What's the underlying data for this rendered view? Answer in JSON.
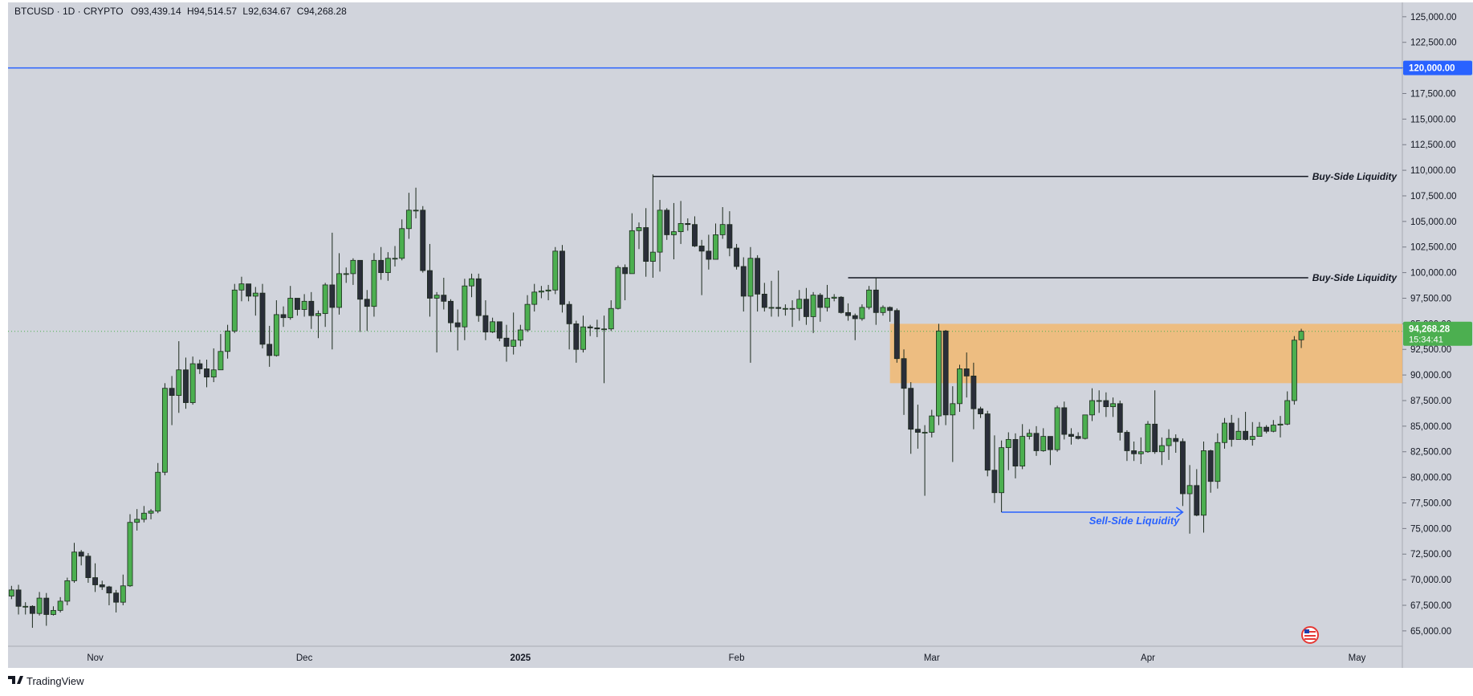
{
  "chart_data": {
    "type": "candlestick",
    "symbol": "BTCUSD · 1D · CRYPTO",
    "ohlc_labels": [
      "O93,439.14",
      "H94,514.57",
      "L92,634.67",
      "C94,268.28"
    ],
    "brand": "TradingView",
    "categories": [
      null,
      null,
      null,
      null,
      null,
      null,
      null,
      null,
      null,
      null,
      null,
      null,
      "Nov",
      null,
      null,
      null,
      null,
      null,
      null,
      null,
      null,
      null,
      null,
      null,
      null,
      null,
      null,
      null,
      null,
      null,
      null,
      null,
      null,
      null,
      null,
      null,
      null,
      null,
      null,
      null,
      null,
      null,
      "Dec",
      null,
      null,
      null,
      null,
      null,
      null,
      null,
      null,
      null,
      null,
      null,
      null,
      null,
      null,
      null,
      null,
      null,
      null,
      null,
      null,
      null,
      null,
      null,
      null,
      null,
      null,
      null,
      null,
      null,
      null,
      "2025",
      null,
      null,
      null,
      null,
      null,
      null,
      null,
      null,
      null,
      null,
      null,
      null,
      null,
      null,
      null,
      null,
      null,
      null,
      null,
      null,
      null,
      null,
      null,
      null,
      null,
      null,
      null,
      null,
      null,
      null,
      "Feb",
      null,
      null,
      null,
      null,
      null,
      null,
      null,
      null,
      null,
      null,
      null,
      null,
      null,
      null,
      null,
      null,
      null,
      null,
      null,
      null,
      null,
      null,
      null,
      null,
      null,
      null,
      null,
      "Mar",
      null,
      null,
      null,
      null,
      null,
      null,
      null,
      null,
      null,
      null,
      null,
      null,
      null,
      null,
      null,
      null,
      null,
      null,
      null,
      null,
      null,
      null,
      null,
      null,
      null,
      null,
      null,
      null,
      null,
      null,
      "Apr",
      null,
      null,
      null,
      null,
      null,
      null,
      null,
      null,
      null,
      null,
      null,
      null,
      null,
      null,
      null,
      null,
      null,
      null,
      null,
      null,
      null,
      null,
      null,
      null,
      null,
      null,
      null,
      null,
      null,
      "May",
      null,
      null,
      null,
      null,
      null,
      null
    ],
    "open": [
      68400,
      69000,
      67400,
      67400,
      66700,
      68200,
      66600,
      67000,
      67900,
      69900,
      72700,
      72300,
      70200,
      69500,
      69300,
      68700,
      67800,
      69400,
      75600,
      75900,
      76500,
      76700,
      80500,
      88700,
      88000,
      90500,
      87300,
      91100,
      90600,
      89800,
      90500,
      92300,
      94300,
      98300,
      98900,
      97700,
      98000,
      93000,
      91900,
      95900,
      95600,
      97500,
      96400,
      97200,
      95800,
      96000,
      98800,
      96600,
      99900,
      99900,
      101200,
      97400,
      96700,
      101200,
      100000,
      101400,
      101400,
      104300,
      106100,
      106100,
      100200,
      97500,
      97800,
      97200,
      95100,
      94700,
      98700,
      99400,
      95800,
      94200,
      95200,
      93600,
      92800,
      93400,
      94400,
      96900,
      98100,
      98200,
      98300,
      102100,
      96900,
      95000,
      92500,
      94700,
      94600,
      94500,
      94500,
      96500,
      100500,
      99900,
      104100,
      104400,
      101100,
      102000,
      106100,
      103700,
      104000,
      104800,
      104700,
      102600,
      102100,
      101300,
      103700,
      104700,
      102400,
      100600,
      97700,
      101400,
      97900,
      96600,
      96600,
      96500,
      96500,
      96500,
      97400,
      95700,
      97800,
      96600,
      97500,
      97600,
      96100,
      95800,
      95500,
      96600,
      98300,
      96100,
      96600,
      96300,
      91600,
      88700,
      84700,
      84400,
      84400,
      86000,
      94300,
      86100,
      87200,
      90600,
      89900,
      86700,
      86200,
      80700,
      78500,
      82900,
      83700,
      81100,
      84000,
      84300,
      82600,
      84000,
      82700,
      86800,
      84200,
      84000,
      83800,
      86100,
      87500,
      87500,
      86900,
      87200,
      84400,
      82600,
      82300,
      82500,
      85200,
      82500,
      83100,
      83800,
      83500,
      78400,
      79200,
      76300,
      82600,
      79600,
      83400,
      85300,
      83700,
      84500,
      83700,
      84000,
      84900,
      84500,
      85100,
      85200,
      87500,
      93439.14,
      null,
      null,
      null,
      null,
      null,
      null,
      null,
      null,
      null,
      null,
      null,
      null,
      null,
      null
    ],
    "high": [
      69400,
      69500,
      67800,
      67500,
      68800,
      68700,
      67400,
      68300,
      70200,
      73600,
      72900,
      72600,
      71600,
      69900,
      69400,
      69000,
      70500,
      76400,
      76900,
      77200,
      76900,
      81400,
      89200,
      89900,
      93300,
      91700,
      91800,
      91500,
      91500,
      92600,
      94000,
      94900,
      98900,
      99600,
      98800,
      98600,
      98900,
      94800,
      97300,
      96700,
      98700,
      97500,
      97900,
      98100,
      96300,
      99000,
      103900,
      101900,
      100500,
      101400,
      101200,
      98300,
      101900,
      102500,
      102000,
      102600,
      105200,
      107800,
      108300,
      106500,
      102800,
      98100,
      99500,
      97400,
      96400,
      99400,
      99900,
      99900,
      97300,
      95600,
      95200,
      94900,
      96100,
      94900,
      97800,
      98900,
      98700,
      98800,
      102500,
      102700,
      97200,
      95300,
      95800,
      94900,
      95400,
      95800,
      97300,
      100700,
      100800,
      105800,
      104900,
      106300,
      109600,
      107100,
      106300,
      106800,
      107000,
      105300,
      105500,
      103200,
      103700,
      104800,
      106400,
      106000,
      102800,
      101500,
      102500,
      101700,
      99000,
      99200,
      100200,
      96900,
      97300,
      98300,
      98500,
      98100,
      98000,
      98800,
      97900,
      97700,
      97000,
      96000,
      96900,
      98700,
      99500,
      96800,
      96700,
      96500,
      92500,
      89300,
      87100,
      85100,
      86600,
      95000,
      94400,
      88900,
      91000,
      92200,
      91200,
      86900,
      86500,
      84100,
      83600,
      84400,
      84300,
      85200,
      84700,
      85000,
      84800,
      84000,
      87000,
      87400,
      84800,
      84400,
      86100,
      88700,
      88500,
      88300,
      87800,
      87500,
      84600,
      83500,
      83900,
      85500,
      88500,
      83900,
      84700,
      84200,
      83800,
      81200,
      80800,
      83500,
      82700,
      84300,
      85800,
      86100,
      85800,
      86400,
      85400,
      85400,
      85100,
      85600,
      86000,
      88400,
      93800,
      94514.57,
      null,
      null,
      null,
      null,
      null,
      null,
      null,
      null,
      null,
      null,
      null,
      null,
      null,
      null
    ],
    "low": [
      68100,
      66600,
      66600,
      65300,
      66500,
      65500,
      66500,
      66800,
      67500,
      69700,
      71400,
      69700,
      68800,
      69000,
      67500,
      66800,
      67500,
      69300,
      74800,
      75600,
      75900,
      76500,
      80200,
      85100,
      86300,
      86700,
      87100,
      90100,
      88800,
      89300,
      90500,
      91600,
      94100,
      97200,
      97200,
      95800,
      92600,
      90800,
      91800,
      94700,
      95400,
      95800,
      95700,
      94500,
      93600,
      94700,
      92500,
      95900,
      99000,
      98800,
      94200,
      94300,
      95700,
      99300,
      99200,
      100600,
      101200,
      103300,
      105300,
      100000,
      95700,
      92200,
      96400,
      94200,
      92400,
      93400,
      97600,
      95200,
      93400,
      94100,
      93300,
      91300,
      92000,
      92800,
      94200,
      96200,
      97500,
      97300,
      97900,
      96100,
      92500,
      91200,
      92200,
      93800,
      93700,
      89200,
      94300,
      96400,
      97300,
      99900,
      102300,
      99600,
      99500,
      100100,
      103200,
      101300,
      102800,
      104100,
      102500,
      97800,
      100300,
      101300,
      103300,
      101600,
      100300,
      96200,
      91200,
      96200,
      96200,
      95700,
      95700,
      95800,
      94700,
      95300,
      94900,
      94100,
      95200,
      96200,
      97200,
      96000,
      95300,
      93400,
      95300,
      96400,
      94900,
      95800,
      95200,
      91200,
      86100,
      82300,
      82800,
      78200,
      83900,
      85100,
      85100,
      81500,
      86400,
      87800,
      84700,
      85800,
      80100,
      77500,
      76600,
      80700,
      79900,
      80800,
      83700,
      82100,
      82500,
      81200,
      82500,
      83700,
      83200,
      83700,
      83700,
      85500,
      86300,
      85900,
      85900,
      83600,
      81600,
      81600,
      81300,
      82400,
      82300,
      81200,
      81700,
      82400,
      77200,
      74500,
      76200,
      74600,
      78500,
      78900,
      82800,
      83000,
      83700,
      83600,
      83100,
      84000,
      84300,
      84400,
      83900,
      85100,
      87100,
      92634.67,
      null,
      null,
      null,
      null,
      null,
      null,
      null,
      null,
      null,
      null,
      null,
      null,
      null,
      null
    ],
    "close": [
      69000,
      67400,
      67400,
      66700,
      68200,
      66600,
      67000,
      67900,
      69900,
      72700,
      72300,
      70200,
      69500,
      69300,
      68700,
      67800,
      69400,
      75600,
      75900,
      76500,
      76700,
      80500,
      88700,
      88000,
      90500,
      87300,
      91100,
      90600,
      89800,
      90500,
      92300,
      94300,
      98300,
      98900,
      97700,
      98000,
      93000,
      91900,
      95900,
      95600,
      97500,
      96400,
      97200,
      95800,
      96000,
      98800,
      96600,
      99900,
      99900,
      101200,
      97400,
      96700,
      101200,
      100000,
      101400,
      101400,
      104300,
      106100,
      106100,
      100200,
      97500,
      97800,
      97200,
      95100,
      94700,
      98700,
      99400,
      95800,
      94200,
      95200,
      93600,
      92800,
      93400,
      94400,
      96900,
      98100,
      98200,
      98300,
      102100,
      96900,
      95000,
      92500,
      94700,
      94600,
      94500,
      94500,
      96500,
      100500,
      99900,
      104100,
      104400,
      101100,
      102000,
      106100,
      103700,
      104000,
      104800,
      104700,
      102600,
      102100,
      101300,
      103700,
      104700,
      102400,
      100600,
      97700,
      101400,
      97900,
      96600,
      96600,
      96500,
      96500,
      96500,
      97400,
      95700,
      97800,
      96600,
      97500,
      97600,
      96100,
      95800,
      95500,
      96600,
      98300,
      96100,
      96600,
      96300,
      91600,
      88700,
      84700,
      84400,
      84400,
      86000,
      94300,
      86100,
      87200,
      90600,
      89900,
      86700,
      86200,
      80700,
      78500,
      82900,
      83700,
      81100,
      84000,
      84300,
      82600,
      84000,
      82700,
      86800,
      84200,
      84000,
      83800,
      86100,
      87500,
      87500,
      86900,
      87200,
      84400,
      82600,
      82300,
      82500,
      85200,
      82500,
      83100,
      83800,
      83500,
      78400,
      79200,
      76300,
      82600,
      79600,
      83400,
      85300,
      83700,
      84500,
      83700,
      84000,
      84900,
      84500,
      85100,
      85200,
      87500,
      93400,
      94268.28,
      null,
      null,
      null,
      null,
      null,
      null,
      null,
      null,
      null,
      null,
      null,
      null,
      null,
      null
    ],
    "up_color": "#4caf50",
    "down_color": "#2a2e39",
    "border_color": "#1c2a1d",
    "ylim": [
      63500,
      126400
    ],
    "yticks": [
      {
        "value": 65000,
        "label": "65,000.00"
      },
      {
        "value": 67500,
        "label": "67,500.00"
      },
      {
        "value": 70000,
        "label": "70,000.00"
      },
      {
        "value": 72500,
        "label": "72,500.00"
      },
      {
        "value": 75000,
        "label": "75,000.00"
      },
      {
        "value": 77500,
        "label": "77,500.00"
      },
      {
        "value": 80000,
        "label": "80,000.00"
      },
      {
        "value": 82500,
        "label": "82,500.00"
      },
      {
        "value": 85000,
        "label": "85,000.00"
      },
      {
        "value": 87500,
        "label": "87,500.00"
      },
      {
        "value": 90000,
        "label": "90,000.00"
      },
      {
        "value": 92500,
        "label": "92,500.00"
      },
      {
        "value": 95000,
        "label": "95,000.00"
      },
      {
        "value": 97500,
        "label": "97,500.00"
      },
      {
        "value": 100000,
        "label": "100,000.00"
      },
      {
        "value": 102500,
        "label": "102,500.00"
      },
      {
        "value": 105000,
        "label": "105,000.00"
      },
      {
        "value": 107500,
        "label": "107,500.00"
      },
      {
        "value": 110000,
        "label": "110,000.00"
      },
      {
        "value": 112500,
        "label": "112,500.00"
      },
      {
        "value": 115000,
        "label": "115,000.00"
      },
      {
        "value": 117500,
        "label": "117,500.00"
      },
      {
        "value": 120000,
        "label": "120,000.00"
      },
      {
        "value": 122500,
        "label": "122,500.00"
      },
      {
        "value": 125000,
        "label": "125,000.00"
      }
    ],
    "hline": {
      "value": 120000,
      "label": "120,000.00",
      "color": "#2962ff"
    },
    "last_price": {
      "value": 94268.28,
      "label": "94,268.28",
      "countdown": "15:34:41",
      "color": "#4caf50"
    },
    "zone": {
      "low": 89200,
      "high": 95000,
      "start": 126,
      "color": "#f4b66a"
    },
    "levels": [
      {
        "label": "Buy-Side Liquidity",
        "value": 109400,
        "start": 92,
        "end": 186
      },
      {
        "label": "Buy-Side Liquidity",
        "value": 99500,
        "start": 120,
        "end": 186
      }
    ],
    "sell_side": {
      "label": "Sell-Side Liquidity",
      "value": 76600,
      "start": 142,
      "end": 168,
      "color": "#2962ff"
    }
  }
}
